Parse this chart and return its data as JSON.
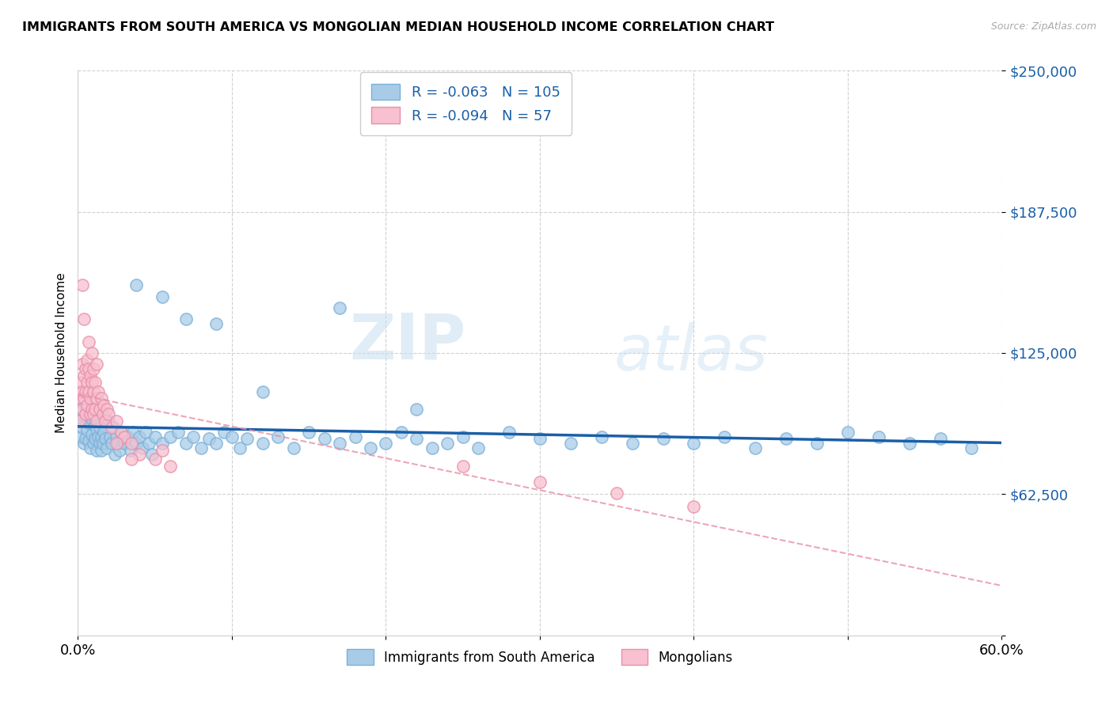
{
  "title": "IMMIGRANTS FROM SOUTH AMERICA VS MONGOLIAN MEDIAN HOUSEHOLD INCOME CORRELATION CHART",
  "source_text": "Source: ZipAtlas.com",
  "ylabel": "Median Household Income",
  "x_min": 0.0,
  "x_max": 0.6,
  "y_min": 0,
  "y_max": 250000,
  "yticks": [
    0,
    62500,
    125000,
    187500,
    250000
  ],
  "xticks": [
    0.0,
    0.1,
    0.2,
    0.3,
    0.4,
    0.5,
    0.6
  ],
  "xtick_labels": [
    "0.0%",
    "",
    "",
    "",
    "",
    "",
    "60.0%"
  ],
  "blue_color": "#a8cce8",
  "blue_edge_color": "#7ab0d8",
  "pink_color": "#f8c0d0",
  "pink_edge_color": "#e890a8",
  "blue_line_color": "#1a5fa8",
  "pink_line_color": "#e890a8",
  "legend_blue_label": "Immigrants from South America",
  "legend_pink_label": "Mongolians",
  "r_blue": "-0.063",
  "n_blue": "105",
  "r_pink": "-0.094",
  "n_pink": "57",
  "watermark_zip": "ZIP",
  "watermark_atlas": "atlas",
  "blue_scatter_x": [
    0.001,
    0.002,
    0.002,
    0.003,
    0.003,
    0.004,
    0.004,
    0.005,
    0.005,
    0.006,
    0.006,
    0.007,
    0.007,
    0.008,
    0.008,
    0.009,
    0.009,
    0.01,
    0.01,
    0.011,
    0.011,
    0.012,
    0.012,
    0.013,
    0.013,
    0.014,
    0.014,
    0.015,
    0.015,
    0.016,
    0.016,
    0.017,
    0.018,
    0.019,
    0.02,
    0.021,
    0.022,
    0.023,
    0.024,
    0.025,
    0.026,
    0.027,
    0.028,
    0.029,
    0.03,
    0.032,
    0.034,
    0.036,
    0.038,
    0.04,
    0.042,
    0.044,
    0.046,
    0.048,
    0.05,
    0.055,
    0.06,
    0.065,
    0.07,
    0.075,
    0.08,
    0.085,
    0.09,
    0.095,
    0.1,
    0.105,
    0.11,
    0.12,
    0.13,
    0.14,
    0.15,
    0.16,
    0.17,
    0.18,
    0.19,
    0.2,
    0.21,
    0.22,
    0.23,
    0.24,
    0.25,
    0.26,
    0.28,
    0.3,
    0.32,
    0.34,
    0.36,
    0.38,
    0.4,
    0.42,
    0.44,
    0.46,
    0.48,
    0.5,
    0.52,
    0.54,
    0.56,
    0.58,
    0.038,
    0.055,
    0.07,
    0.09,
    0.12,
    0.17,
    0.22
  ],
  "blue_scatter_y": [
    95000,
    105000,
    88000,
    100000,
    92000,
    97000,
    85000,
    102000,
    87000,
    98000,
    91000,
    94000,
    86000,
    99000,
    83000,
    96000,
    89000,
    100000,
    85000,
    93000,
    87000,
    91000,
    82000,
    95000,
    88000,
    85000,
    92000,
    88000,
    82000,
    97000,
    85000,
    90000,
    87000,
    83000,
    95000,
    88000,
    85000,
    92000,
    80000,
    88000,
    85000,
    82000,
    90000,
    87000,
    85000,
    88000,
    82000,
    90000,
    85000,
    88000,
    83000,
    90000,
    85000,
    80000,
    88000,
    85000,
    88000,
    90000,
    85000,
    88000,
    83000,
    87000,
    85000,
    90000,
    88000,
    83000,
    87000,
    85000,
    88000,
    83000,
    90000,
    87000,
    85000,
    88000,
    83000,
    85000,
    90000,
    87000,
    83000,
    85000,
    88000,
    83000,
    90000,
    87000,
    85000,
    88000,
    85000,
    87000,
    85000,
    88000,
    83000,
    87000,
    85000,
    90000,
    88000,
    85000,
    87000,
    83000,
    155000,
    150000,
    140000,
    138000,
    108000,
    145000,
    100000
  ],
  "pink_scatter_x": [
    0.001,
    0.001,
    0.002,
    0.002,
    0.003,
    0.003,
    0.003,
    0.004,
    0.004,
    0.005,
    0.005,
    0.005,
    0.006,
    0.006,
    0.006,
    0.007,
    0.007,
    0.008,
    0.008,
    0.008,
    0.009,
    0.009,
    0.01,
    0.01,
    0.01,
    0.011,
    0.011,
    0.012,
    0.012,
    0.013,
    0.014,
    0.015,
    0.016,
    0.017,
    0.018,
    0.019,
    0.02,
    0.022,
    0.025,
    0.028,
    0.03,
    0.035,
    0.04,
    0.05,
    0.055,
    0.06,
    0.25,
    0.3,
    0.35,
    0.4,
    0.003,
    0.004,
    0.007,
    0.009,
    0.012,
    0.025,
    0.035
  ],
  "pink_scatter_y": [
    108000,
    95000,
    112000,
    105000,
    120000,
    108000,
    100000,
    115000,
    105000,
    118000,
    108000,
    98000,
    122000,
    112000,
    102000,
    118000,
    108000,
    115000,
    105000,
    98000,
    112000,
    100000,
    118000,
    108000,
    98000,
    112000,
    100000,
    105000,
    95000,
    108000,
    100000,
    105000,
    98000,
    102000,
    95000,
    100000,
    98000,
    92000,
    95000,
    90000,
    88000,
    85000,
    80000,
    78000,
    82000,
    75000,
    75000,
    68000,
    63000,
    57000,
    155000,
    140000,
    130000,
    125000,
    120000,
    85000,
    78000
  ]
}
